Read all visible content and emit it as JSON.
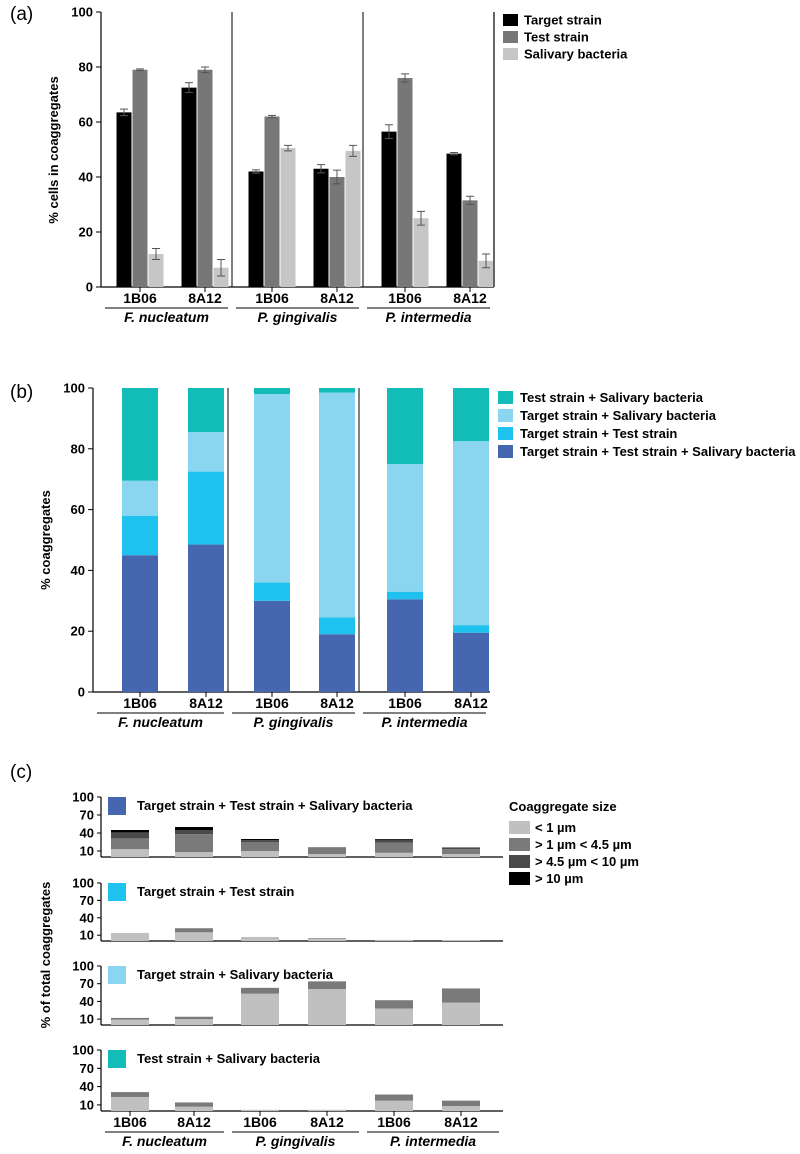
{
  "chart_data": [
    {
      "panel": "(a)",
      "type": "bar",
      "ylabel": "% cells in coaggregates",
      "ylim": [
        0,
        100
      ],
      "yticks": [
        0,
        20,
        40,
        60,
        80,
        100
      ],
      "categories": [
        "1B06",
        "8A12",
        "1B06",
        "8A12",
        "1B06",
        "8A12"
      ],
      "groups": [
        "F. nucleatum",
        "P. gingivalis",
        "P. intermedia"
      ],
      "series": [
        {
          "name": "Target strain",
          "color": "#000000",
          "values": [
            63.5,
            72.5,
            42,
            43,
            56.5,
            48.5
          ],
          "errors": [
            1.2,
            1.8,
            0.6,
            1.5,
            2.5,
            0.4
          ]
        },
        {
          "name": "Test strain",
          "color": "#777777",
          "values": [
            79,
            79,
            62,
            40,
            76,
            31.5
          ],
          "errors": [
            0.3,
            1.0,
            0.4,
            2.5,
            1.5,
            1.5
          ]
        },
        {
          "name": "Salivary bacteria",
          "color": "#c6c6c6",
          "values": [
            12,
            7,
            50.5,
            49.5,
            25,
            9.5
          ],
          "errors": [
            2.0,
            3.0,
            1.0,
            2.0,
            2.5,
            2.5
          ]
        }
      ]
    },
    {
      "panel": "(b)",
      "type": "bar",
      "stacked": true,
      "ylabel": "% coaggregates",
      "ylim": [
        0,
        100
      ],
      "yticks": [
        0,
        20,
        40,
        60,
        80,
        100
      ],
      "categories": [
        "1B06",
        "8A12",
        "1B06",
        "8A12",
        "1B06",
        "8A12"
      ],
      "groups": [
        "F. nucleatum",
        "P. gingivalis",
        "P. intermedia"
      ],
      "legend_order": [
        3,
        2,
        1,
        0
      ],
      "series": [
        {
          "name": "Target strain + Test strain + Salivary bacteria",
          "color": "#4766b0",
          "values": [
            45,
            48.5,
            30,
            19,
            30.5,
            19.5
          ]
        },
        {
          "name": "Target strain + Test strain",
          "color": "#1fc1ee",
          "values": [
            13,
            24,
            6,
            5.5,
            2.5,
            2.5
          ]
        },
        {
          "name": "Target strain + Salivary bacteria",
          "color": "#8ad6f0",
          "values": [
            11.5,
            13,
            62,
            74,
            42,
            60.5
          ]
        },
        {
          "name": "Test strain + Salivary bacteria",
          "color": "#12bdb8",
          "values": [
            30.5,
            14.5,
            2,
            1.5,
            25,
            17.5
          ]
        }
      ]
    },
    {
      "panel": "(c)",
      "type": "bar",
      "stacked": true,
      "ylabel": "% of total coaggregates",
      "ylim": [
        0,
        100
      ],
      "yticks": [
        10,
        40,
        70,
        100
      ],
      "categories": [
        "1B06",
        "8A12",
        "1B06",
        "8A12",
        "1B06",
        "8A12"
      ],
      "groups": [
        "F. nucleatum",
        "P. gingivalis",
        "P. intermedia"
      ],
      "legend_title": "Coaggregate size",
      "size_classes": [
        {
          "name": "< 1 µm",
          "color": "#c0c0c0"
        },
        {
          "name": "> 1 µm < 4.5 µm",
          "color": "#7a7a7a"
        },
        {
          "name": "> 4.5 µm < 10 µm",
          "color": "#4a4a4a"
        },
        {
          "name": "> 10 µm",
          "color": "#000000"
        }
      ],
      "subplots": [
        {
          "name": "Target strain + Test strain + Salivary bacteria",
          "color": "#4766b0",
          "values": [
            [
              13,
              18,
              10,
              4
            ],
            [
              8,
              30,
              7,
              5
            ],
            [
              10,
              15,
              3,
              2
            ],
            [
              5,
              10,
              1,
              0
            ],
            [
              7,
              17,
              5,
              1
            ],
            [
              5,
              8,
              3,
              0
            ]
          ]
        },
        {
          "name": "Target strain + Test strain",
          "color": "#1fc1ee",
          "values": [
            [
              14,
              0,
              0,
              0
            ],
            [
              15,
              7,
              0,
              0
            ],
            [
              7,
              0,
              0,
              0
            ],
            [
              4,
              1,
              0,
              0
            ],
            [
              2,
              0,
              0,
              0
            ],
            [
              1,
              0,
              0,
              0
            ]
          ]
        },
        {
          "name": "Target strain + Salivary bacteria",
          "color": "#8ad6f0",
          "values": [
            [
              9,
              3,
              0,
              0
            ],
            [
              10,
              4,
              0,
              0
            ],
            [
              53,
              10,
              0,
              0
            ],
            [
              61,
              13,
              0,
              0
            ],
            [
              28,
              14,
              0,
              0
            ],
            [
              38,
              24,
              0,
              0
            ]
          ]
        },
        {
          "name": "Test strain + Salivary bacteria",
          "color": "#12bdb8",
          "values": [
            [
              23,
              8,
              0,
              0
            ],
            [
              7,
              7,
              0,
              0
            ],
            [
              2,
              0,
              0,
              0
            ],
            [
              2,
              0,
              0,
              0
            ],
            [
              17,
              10,
              0,
              0
            ],
            [
              8,
              9,
              0,
              0
            ]
          ]
        }
      ]
    }
  ]
}
